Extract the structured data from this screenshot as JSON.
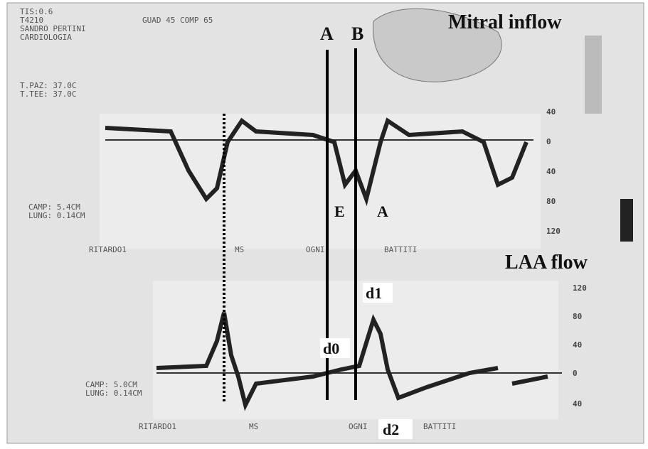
{
  "panels": [
    {
      "title": "Mitral inflow",
      "labels": [
        "E",
        "A"
      ],
      "scale": [
        "40",
        "0",
        "40",
        "80",
        "120"
      ]
    },
    {
      "title": "LAA flow",
      "labels": [
        "d0",
        "d1",
        "d2"
      ],
      "scale": [
        "120",
        "80",
        "40",
        "0",
        "40"
      ]
    }
  ],
  "lines": [
    "A",
    "B"
  ],
  "screen_text": [
    "TIS:0.6",
    "T4210",
    "GUAD 45 COMP 65",
    "SANDRO PERTINI",
    "CARDIOLOGIA",
    "T.PAZ: 37.0C",
    "T.TEE: 37.0C",
    "CAMP: 5.4CM",
    "LUNG: 0.14CM",
    "RITARDO1",
    "MS",
    "OGNI",
    "BATTITI",
    "CAMP: 5.0CM",
    "LUNG: 0.14CM",
    "RITARDO1",
    "MS",
    "OGNI",
    "BATTITI"
  ]
}
